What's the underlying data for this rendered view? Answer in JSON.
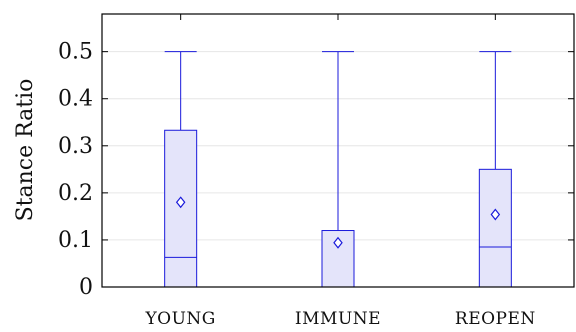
{
  "chart_data": {
    "type": "boxplot",
    "title": "",
    "xlabel": "",
    "ylabel": "Stance Ratio",
    "ylim": [
      0,
      0.58
    ],
    "yticks": [
      0,
      0.1,
      0.2,
      0.3,
      0.4,
      0.5
    ],
    "ytick_labels": [
      "0",
      "0.1",
      "0.2",
      "0.3",
      "0.4",
      "0.5"
    ],
    "grid": "horizontal",
    "categories": [
      "YOUNG",
      "IMMUNE",
      "REOPEN"
    ],
    "boxes": [
      {
        "category": "YOUNG",
        "whisker_low": 0,
        "q1": 0,
        "median": 0.063,
        "q3": 0.333,
        "whisker_high": 0.5,
        "mean": 0.18
      },
      {
        "category": "IMMUNE",
        "whisker_low": 0,
        "q1": 0,
        "median": 0,
        "q3": 0.12,
        "whisker_high": 0.5,
        "mean": 0.094
      },
      {
        "category": "REOPEN",
        "whisker_low": 0,
        "q1": 0,
        "median": 0.085,
        "q3": 0.25,
        "whisker_high": 0.5,
        "mean": 0.154
      }
    ],
    "colors": {
      "box_stroke": "#1a1adb",
      "box_fill": "#e4e4fa",
      "grid": "#e6e6e6",
      "axis": "#000000"
    }
  }
}
